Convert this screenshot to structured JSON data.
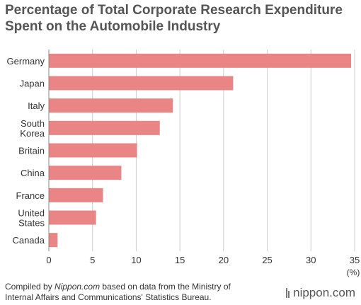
{
  "title_line1": "Percentage of Total Corporate Research Expenditure",
  "title_line2": "Spent on the Automobile Industry",
  "source": {
    "prefix": "Compiled by ",
    "site": "Nippon.com",
    "rest1": " based on data from the Ministry of",
    "line2": "Internal Affairs and Communications' Statistics Bureau."
  },
  "brand": "nippon.com",
  "colors": {
    "bar": "#e98585",
    "grid": "#cccccc",
    "axis": "#888888"
  },
  "chart_data": {
    "type": "bar",
    "orientation": "horizontal",
    "title": "Percentage of Total Corporate Research Expenditure Spent on the Automobile Industry",
    "categories": [
      "Germany",
      "Japan",
      "Italy",
      "South Korea",
      "Britain",
      "China",
      "France",
      "United States",
      "Canada"
    ],
    "category_lines": [
      [
        "Germany"
      ],
      [
        "Japan"
      ],
      [
        "Italy"
      ],
      [
        "South",
        "Korea"
      ],
      [
        "Britain"
      ],
      [
        "China"
      ],
      [
        "France"
      ],
      [
        "United",
        "States"
      ],
      [
        "Canada"
      ]
    ],
    "values": [
      34.6,
      21.1,
      14.2,
      12.7,
      10.1,
      8.3,
      6.2,
      5.4,
      1.0
    ],
    "xlim": [
      0,
      35
    ],
    "xticks": [
      0,
      5,
      10,
      15,
      20,
      25,
      30,
      35
    ],
    "unit_label": "(%)",
    "grid": true
  }
}
